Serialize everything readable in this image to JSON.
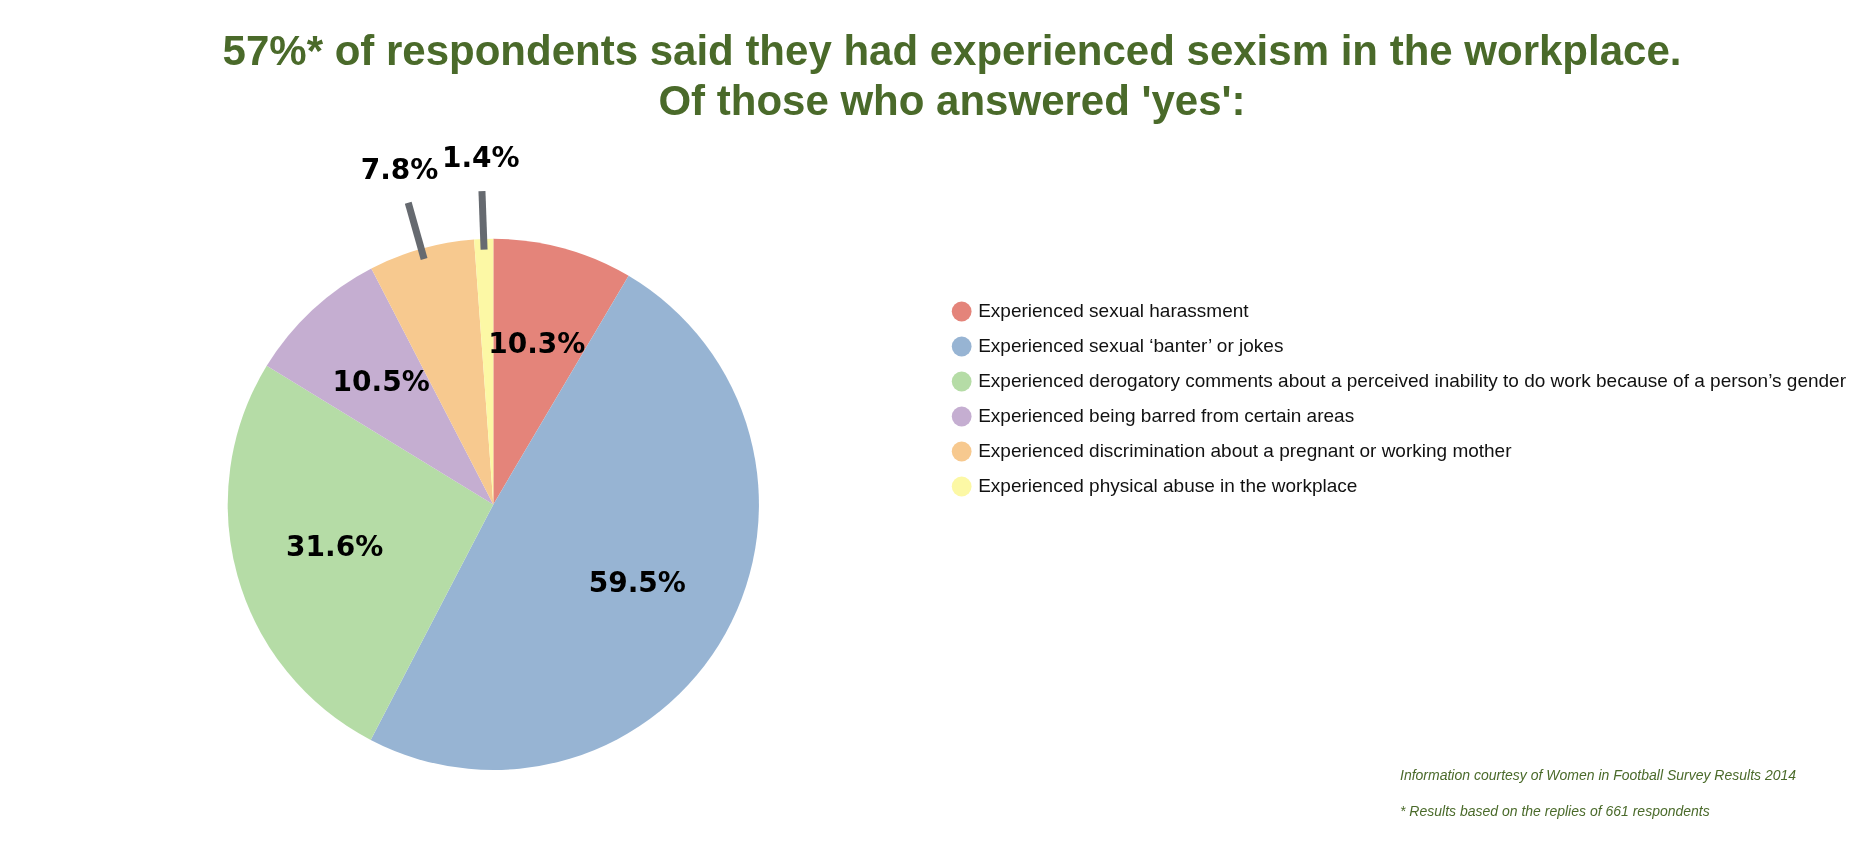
{
  "chart_data": {
    "type": "pie",
    "title": "57%* of respondents said they had experienced sexism in the workplace.\nOf those who answered 'yes':",
    "categories": [
      "Experienced sexual harassment",
      "Experienced sexual ‘banter’ or jokes",
      "Experienced derogatory comments about a perceived inability to do work because of a person’s gender",
      "Experienced being barred from certain areas",
      "Experienced discrimination about a pregnant or working mother",
      "Experienced physical abuse in the workplace"
    ],
    "values": [
      10.3,
      59.5,
      31.6,
      10.5,
      7.8,
      1.4
    ],
    "colors": [
      "#e4847a",
      "#97b4d3",
      "#b5dca6",
      "#c5aed1",
      "#f7c98f",
      "#fcf8a5"
    ],
    "value_labels": [
      "10.3%",
      "59.5%",
      "31.6%",
      "10.5%",
      "7.8%",
      "1.4%"
    ],
    "legend": "right",
    "annotations": [
      "Information courtesy of Women in Football Survey Results 2014",
      "* Results based on the replies of 661 respondents"
    ]
  }
}
